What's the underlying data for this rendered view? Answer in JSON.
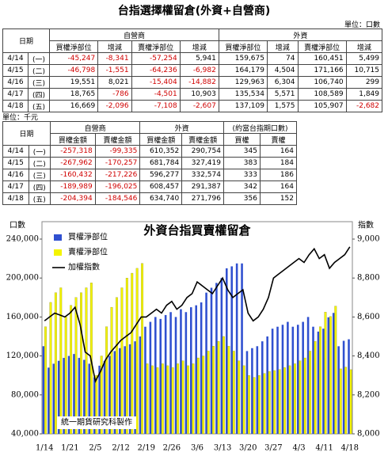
{
  "header": {
    "title": "台指選擇權留倉(外資+自營商)",
    "unit": "單位：口數"
  },
  "table1": {
    "group_headers": [
      "日期",
      "自營商",
      "外資"
    ],
    "headers": [
      "買權淨部位",
      "增減",
      "賣權淨部位",
      "增減",
      "買權淨部位",
      "增減",
      "賣權淨部位",
      "增減"
    ],
    "rows": [
      [
        "4/14",
        "(一)",
        "-45,247",
        "-8,341",
        "-57,254",
        "5,941",
        "159,675",
        "74",
        "160,451",
        "5,499"
      ],
      [
        "4/15",
        "(二)",
        "-46,798",
        "-1,551",
        "-64,236",
        "-6,982",
        "164,179",
        "4,504",
        "171,166",
        "10,715"
      ],
      [
        "4/16",
        "(三)",
        "19,551",
        "8,021",
        "-15,404",
        "-14,882",
        "129,963",
        "6,304",
        "106,740",
        "299"
      ],
      [
        "4/17",
        "(四)",
        "18,765",
        "-786",
        "-4,501",
        "10,903",
        "135,534",
        "5,571",
        "108,589",
        "1,849"
      ],
      [
        "4/18",
        "(五)",
        "16,669",
        "-2,096",
        "-7,108",
        "-2,607",
        "137,109",
        "1,575",
        "105,907",
        "-2,682"
      ]
    ]
  },
  "table2": {
    "unit": "單位：千元",
    "group_headers": [
      "日期",
      "自營商",
      "外資",
      "(約當台指期口數)"
    ],
    "headers": [
      "買權金額",
      "賣權金額",
      "買權金額",
      "賣權金額",
      "買權",
      "賣權"
    ],
    "rows": [
      [
        "4/14",
        "(一)",
        "-257,318",
        "-99,335",
        "610,352",
        "290,754",
        "345",
        "164"
      ],
      [
        "4/15",
        "(二)",
        "-267,962",
        "-170,257",
        "681,784",
        "327,419",
        "383",
        "184"
      ],
      [
        "4/16",
        "(三)",
        "-160,432",
        "-217,226",
        "596,277",
        "332,574",
        "333",
        "186"
      ],
      [
        "4/17",
        "(四)",
        "-189,989",
        "-196,025",
        "608,457",
        "291,387",
        "342",
        "164"
      ],
      [
        "4/18",
        "(五)",
        "-204,394",
        "-184,546",
        "634,740",
        "271,796",
        "356",
        "152"
      ]
    ]
  },
  "chart_data": {
    "type": "bar",
    "title": "外資台指買賣權留倉",
    "ylabel": "口數",
    "y2label": "指數",
    "annotation": "統一期貨研究科製作",
    "categories": [
      "1/14",
      null,
      null,
      null,
      null,
      "1/21",
      null,
      null,
      null,
      null,
      "2/5",
      null,
      null,
      null,
      null,
      "2/12",
      null,
      null,
      null,
      null,
      "2/19",
      null,
      null,
      null,
      null,
      "2/26",
      null,
      null,
      null,
      null,
      "3/6",
      null,
      null,
      null,
      null,
      "3/13",
      null,
      null,
      null,
      null,
      "3/20",
      null,
      null,
      null,
      null,
      "3/27",
      null,
      null,
      null,
      null,
      "4/3",
      null,
      null,
      null,
      null,
      "4/11",
      null,
      null,
      null,
      null,
      "4/18"
    ],
    "series": [
      {
        "name": "買權淨部位",
        "color": "#3050d0",
        "values": [
          130000,
          108000,
          112000,
          115000,
          118000,
          120000,
          122000,
          118000,
          116000,
          112000,
          98000,
          110000,
          115000,
          120000,
          125000,
          128000,
          130000,
          132000,
          135000,
          140000,
          150000,
          155000,
          160000,
          158000,
          162000,
          165000,
          160000,
          168000,
          165000,
          170000,
          172000,
          175000,
          185000,
          190000,
          195000,
          200000,
          210000,
          212000,
          215000,
          215000,
          125000,
          128000,
          130000,
          135000,
          140000,
          148000,
          150000,
          152000,
          155000,
          150000,
          152000,
          155000,
          160000,
          150000,
          145000,
          148000,
          159675,
          164179,
          129963,
          135534,
          137109
        ]
      },
      {
        "name": "賣權淨部位",
        "color": "#f4f400",
        "values": [
          150000,
          175000,
          185000,
          190000,
          160000,
          172000,
          180000,
          185000,
          190000,
          195000,
          100000,
          120000,
          150000,
          170000,
          180000,
          190000,
          200000,
          205000,
          210000,
          215000,
          112000,
          110000,
          108000,
          112000,
          110000,
          108000,
          112000,
          115000,
          110000,
          112000,
          118000,
          120000,
          125000,
          130000,
          135000,
          140000,
          130000,
          125000,
          115000,
          110000,
          100000,
          98000,
          100000,
          102000,
          104000,
          105000,
          106000,
          108000,
          110000,
          112000,
          115000,
          118000,
          125000,
          135000,
          150000,
          165000,
          160451,
          171166,
          106740,
          108589,
          105907
        ]
      },
      {
        "name": "加權指數",
        "color": "#000000",
        "axis": "y2",
        "type": "line",
        "values": [
          8580,
          8600,
          8620,
          8610,
          8600,
          8620,
          8650,
          8560,
          8420,
          8400,
          8270,
          8320,
          8380,
          8420,
          8450,
          8480,
          8500,
          8520,
          8560,
          8600,
          8600,
          8620,
          8640,
          8620,
          8660,
          8680,
          8640,
          8660,
          8700,
          8720,
          8780,
          8760,
          8740,
          8720,
          8760,
          8800,
          8740,
          8700,
          8720,
          8740,
          8620,
          8580,
          8600,
          8640,
          8700,
          8800,
          8820,
          8840,
          8860,
          8880,
          8900,
          8880,
          8920,
          8950,
          8900,
          8920,
          8850,
          8880,
          8900,
          8920,
          8960
        ]
      }
    ],
    "ylim": [
      40000,
      240000
    ],
    "yticks": [
      {
        "value": 40000,
        "label": "40,000"
      },
      {
        "value": 80000,
        "label": "80,000"
      },
      {
        "value": 120000,
        "label": "120,000"
      },
      {
        "value": 160000,
        "label": "160,000"
      },
      {
        "value": 200000,
        "label": "200,000"
      },
      {
        "value": 240000,
        "label": "240,000"
      }
    ],
    "y2lim": [
      8000,
      9000
    ],
    "y2ticks": [
      {
        "value": 8000,
        "label": "8,000"
      },
      {
        "value": 8200,
        "label": "8,200"
      },
      {
        "value": 8400,
        "label": "8,400"
      },
      {
        "value": 8600,
        "label": "8,600"
      },
      {
        "value": 8800,
        "label": "8,800"
      },
      {
        "value": 9000,
        "label": "9,000"
      }
    ],
    "legend": "upper left"
  }
}
